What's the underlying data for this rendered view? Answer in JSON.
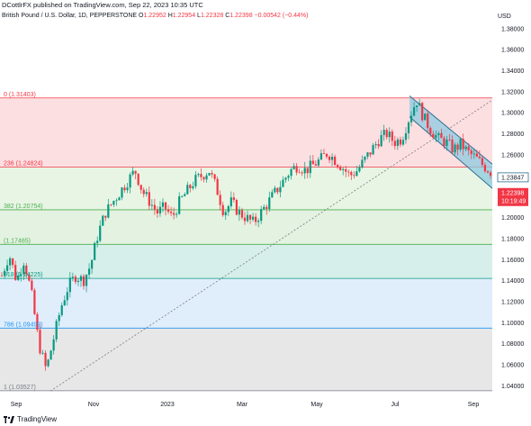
{
  "header": {
    "publisher": "DCottlrFX published on TradingView.com, Sep 22, 2023 10:35 UTC"
  },
  "instrument": {
    "title": "British Pound / U.S. Dollar, 1D, PEPPERSTONE",
    "open_label": "O",
    "open": "1.22952",
    "high_label": "H",
    "high": "1.22954",
    "low_label": "L",
    "low": "1.22328",
    "close_label": "C",
    "close": "1.22398",
    "change": "−0.00542 (−0.44%)"
  },
  "currency": "USD",
  "price_axis": {
    "labels": [
      "1.38000",
      "1.36000",
      "1.34000",
      "1.32000",
      "1.30000",
      "1.28000",
      "1.26000",
      "1.24000",
      "1.22000",
      "1.20000",
      "1.18000",
      "1.16000",
      "1.14000",
      "1.12000",
      "1.10000",
      "1.08000",
      "1.06000",
      "1.04000"
    ],
    "current_price": "1.22398",
    "countdown": "10:19:49",
    "channel_price": "1.23847"
  },
  "time_axis": {
    "labels": [
      "Sep",
      "Nov",
      "2023",
      "Mar",
      "May",
      "Jul",
      "Sep"
    ]
  },
  "fibonacci": [
    {
      "level_label": "0 (1.31403)",
      "price": 1.31403,
      "color": "#f23645"
    },
    {
      "level_label": "236 (1.24824)",
      "price": 1.24824,
      "color": "#f23645"
    },
    {
      "level_label": "382 (1.20754)",
      "price": 1.20754,
      "color": "#4caf50"
    },
    {
      "level_label": "(1.17465)",
      "price": 1.17465,
      "color": "#4caf50"
    },
    {
      "level_label": "618 (1.14225)",
      "price": 1.14225,
      "color": "#089981"
    },
    {
      "level_label": "786 (1.09492)",
      "price": 1.09492,
      "color": "#2196f3"
    },
    {
      "level_label": "1 (1.03527)",
      "price": 1.03527,
      "color": "#787b86"
    }
  ],
  "colors": {
    "up": "#089981",
    "down": "#f23645",
    "zone_0_236": "#fcdfe1",
    "zone_236_382": "#e8f5e4",
    "zone_382_500": "#e3f2e1",
    "zone_500_618": "#d7efea",
    "zone_618_786": "#e0eefc",
    "zone_786_1": "#e7e7e7",
    "channel_fill": "#8ec9e0",
    "channel_edge": "#2c6e8f"
  },
  "chart_data": {
    "type": "candlestick",
    "ylim": [
      1.03,
      1.385
    ],
    "close_path": [
      [
        0,
        1.145
      ],
      [
        1,
        1.165
      ],
      [
        2,
        1.14
      ],
      [
        3,
        1.16
      ],
      [
        4,
        1.128
      ],
      [
        5,
        1.08
      ],
      [
        6,
        1.055
      ],
      [
        7,
        1.085
      ],
      [
        8,
        1.115
      ],
      [
        9,
        1.135
      ],
      [
        10,
        1.145
      ],
      [
        11,
        1.14
      ],
      [
        12,
        1.155
      ],
      [
        13,
        1.185
      ],
      [
        14,
        1.205
      ],
      [
        15,
        1.215
      ],
      [
        16,
        1.225
      ],
      [
        17,
        1.235
      ],
      [
        18,
        1.245
      ],
      [
        19,
        1.225
      ],
      [
        20,
        1.215
      ],
      [
        21,
        1.205
      ],
      [
        22,
        1.21
      ],
      [
        23,
        1.2
      ],
      [
        24,
        1.215
      ],
      [
        25,
        1.225
      ],
      [
        26,
        1.235
      ],
      [
        27,
        1.24
      ],
      [
        28,
        1.245
      ],
      [
        29,
        1.228
      ],
      [
        30,
        1.205
      ],
      [
        31,
        1.215
      ],
      [
        32,
        1.205
      ],
      [
        33,
        1.2
      ],
      [
        34,
        1.195
      ],
      [
        35,
        1.205
      ],
      [
        36,
        1.215
      ],
      [
        37,
        1.225
      ],
      [
        38,
        1.235
      ],
      [
        39,
        1.245
      ],
      [
        40,
        1.25
      ],
      [
        41,
        1.245
      ],
      [
        42,
        1.25
      ],
      [
        43,
        1.255
      ],
      [
        44,
        1.262
      ],
      [
        45,
        1.255
      ],
      [
        46,
        1.248
      ],
      [
        47,
        1.24
      ],
      [
        48,
        1.245
      ],
      [
        49,
        1.255
      ],
      [
        50,
        1.265
      ],
      [
        51,
        1.275
      ],
      [
        52,
        1.28
      ],
      [
        53,
        1.272
      ],
      [
        54,
        1.275
      ],
      [
        55,
        1.295
      ],
      [
        56,
        1.312
      ],
      [
        57,
        1.295
      ],
      [
        58,
        1.283
      ],
      [
        59,
        1.275
      ],
      [
        60,
        1.272
      ],
      [
        61,
        1.265
      ],
      [
        62,
        1.27
      ],
      [
        63,
        1.262
      ],
      [
        64,
        1.257
      ],
      [
        65,
        1.25
      ],
      [
        66,
        1.244
      ]
    ]
  }
}
